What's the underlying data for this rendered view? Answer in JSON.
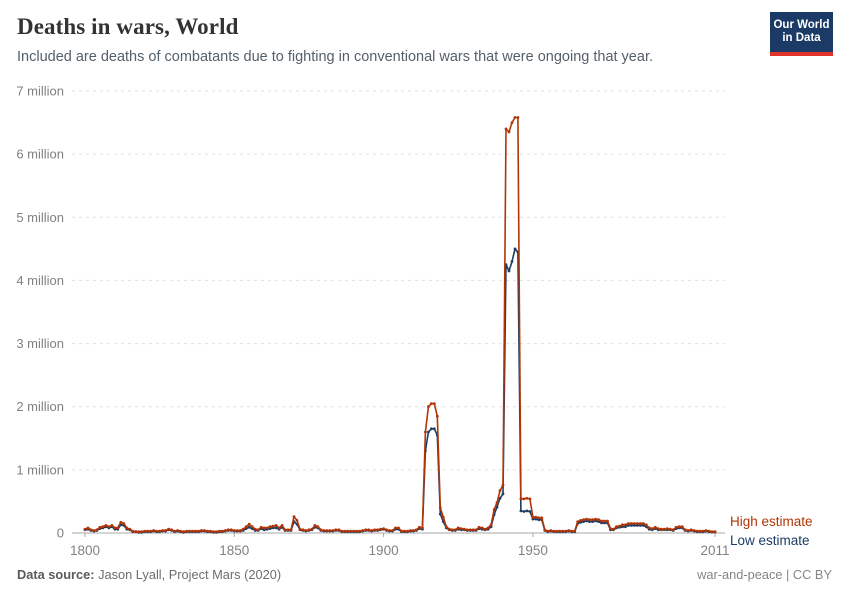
{
  "header": {
    "title": "Deaths in wars, World",
    "subtitle": "Included are deaths of combatants due to fighting in conventional wars that were ongoing that year.",
    "logo": {
      "line1": "Our World",
      "line2": "in Data"
    }
  },
  "legend": {
    "high_label": "High estimate",
    "low_label": "Low estimate"
  },
  "footer": {
    "source_label": "Data source:",
    "source_value": " Jason Lyall, Project Mars (2020)",
    "license": "war-and-peace | CC BY"
  },
  "colors": {
    "high": "#B13507",
    "low": "#1D3D63",
    "grid": "#e1e1e1",
    "zero_line": "#a7a7a7",
    "axis_text": "#818181",
    "tick": "#a7a7a7"
  },
  "chart_data": {
    "type": "line",
    "title": "Deaths in wars, World",
    "xlabel": "",
    "ylabel": "",
    "xlim": [
      1800,
      2011
    ],
    "ylim": [
      0,
      7000000
    ],
    "grid": "dashed-horizontal",
    "legend_position": "right-of-line-end",
    "xticks": [
      {
        "v": 1800,
        "label": "1800"
      },
      {
        "v": 1850,
        "label": "1850"
      },
      {
        "v": 1900,
        "label": "1900"
      },
      {
        "v": 1950,
        "label": "1950"
      },
      {
        "v": 2011,
        "label": "2011"
      }
    ],
    "yticks": [
      {
        "v": 0,
        "label": "0"
      },
      {
        "v": 1000000,
        "label": "1 million"
      },
      {
        "v": 2000000,
        "label": "2 million"
      },
      {
        "v": 3000000,
        "label": "3 million"
      },
      {
        "v": 4000000,
        "label": "4 million"
      },
      {
        "v": 5000000,
        "label": "5 million"
      },
      {
        "v": 6000000,
        "label": "6 million"
      },
      {
        "v": 7000000,
        "label": "7 million"
      }
    ],
    "x_years_start": 1800,
    "x_years_end": 2011,
    "series": [
      {
        "name": "Low estimate",
        "color": "#1D3D63",
        "values_millions": [
          0.05,
          0.06,
          0.04,
          0.03,
          0.04,
          0.07,
          0.08,
          0.1,
          0.08,
          0.1,
          0.06,
          0.06,
          0.13,
          0.12,
          0.06,
          0.05,
          0.02,
          0.02,
          0.01,
          0.01,
          0.02,
          0.02,
          0.02,
          0.03,
          0.02,
          0.02,
          0.03,
          0.03,
          0.05,
          0.04,
          0.02,
          0.03,
          0.02,
          0.01,
          0.02,
          0.02,
          0.02,
          0.02,
          0.02,
          0.03,
          0.03,
          0.02,
          0.02,
          0.01,
          0.01,
          0.02,
          0.02,
          0.03,
          0.04,
          0.04,
          0.03,
          0.03,
          0.03,
          0.04,
          0.07,
          0.09,
          0.07,
          0.04,
          0.04,
          0.07,
          0.05,
          0.06,
          0.07,
          0.08,
          0.08,
          0.06,
          0.09,
          0.04,
          0.04,
          0.04,
          0.18,
          0.14,
          0.05,
          0.04,
          0.03,
          0.04,
          0.05,
          0.09,
          0.08,
          0.04,
          0.03,
          0.03,
          0.03,
          0.03,
          0.04,
          0.04,
          0.02,
          0.02,
          0.02,
          0.02,
          0.02,
          0.02,
          0.02,
          0.03,
          0.04,
          0.04,
          0.03,
          0.04,
          0.04,
          0.05,
          0.06,
          0.04,
          0.03,
          0.03,
          0.06,
          0.06,
          0.02,
          0.02,
          0.02,
          0.03,
          0.03,
          0.04,
          0.07,
          0.06,
          1.3,
          1.6,
          1.65,
          1.65,
          1.55,
          0.3,
          0.18,
          0.08,
          0.05,
          0.04,
          0.04,
          0.06,
          0.05,
          0.05,
          0.04,
          0.04,
          0.04,
          0.04,
          0.07,
          0.06,
          0.05,
          0.06,
          0.1,
          0.29,
          0.41,
          0.55,
          0.62,
          4.25,
          4.15,
          4.3,
          4.5,
          4.45,
          0.35,
          0.34,
          0.35,
          0.34,
          0.22,
          0.22,
          0.21,
          0.21,
          0.04,
          0.02,
          0.03,
          0.02,
          0.02,
          0.02,
          0.02,
          0.02,
          0.03,
          0.02,
          0.02,
          0.15,
          0.17,
          0.18,
          0.19,
          0.18,
          0.18,
          0.19,
          0.18,
          0.16,
          0.16,
          0.16,
          0.05,
          0.05,
          0.08,
          0.09,
          0.1,
          0.1,
          0.12,
          0.12,
          0.12,
          0.12,
          0.12,
          0.12,
          0.1,
          0.06,
          0.05,
          0.07,
          0.05,
          0.05,
          0.05,
          0.05,
          0.05,
          0.04,
          0.07,
          0.08,
          0.08,
          0.04,
          0.03,
          0.04,
          0.03,
          0.02,
          0.02,
          0.02,
          0.03,
          0.02,
          0.015,
          0.015
        ]
      },
      {
        "name": "High estimate",
        "color": "#B13507",
        "values_millions": [
          0.06,
          0.08,
          0.05,
          0.04,
          0.05,
          0.09,
          0.1,
          0.12,
          0.1,
          0.12,
          0.08,
          0.08,
          0.17,
          0.15,
          0.08,
          0.06,
          0.03,
          0.02,
          0.02,
          0.02,
          0.03,
          0.03,
          0.03,
          0.04,
          0.03,
          0.03,
          0.04,
          0.04,
          0.06,
          0.05,
          0.03,
          0.04,
          0.03,
          0.02,
          0.03,
          0.03,
          0.03,
          0.03,
          0.03,
          0.04,
          0.04,
          0.03,
          0.03,
          0.02,
          0.02,
          0.03,
          0.03,
          0.04,
          0.05,
          0.05,
          0.04,
          0.04,
          0.04,
          0.06,
          0.1,
          0.14,
          0.1,
          0.06,
          0.05,
          0.09,
          0.08,
          0.08,
          0.1,
          0.11,
          0.12,
          0.08,
          0.12,
          0.05,
          0.05,
          0.05,
          0.26,
          0.2,
          0.06,
          0.05,
          0.04,
          0.05,
          0.06,
          0.12,
          0.1,
          0.05,
          0.04,
          0.04,
          0.04,
          0.04,
          0.05,
          0.05,
          0.03,
          0.03,
          0.03,
          0.03,
          0.03,
          0.03,
          0.03,
          0.04,
          0.05,
          0.05,
          0.04,
          0.05,
          0.05,
          0.06,
          0.07,
          0.05,
          0.04,
          0.04,
          0.08,
          0.08,
          0.03,
          0.03,
          0.03,
          0.04,
          0.04,
          0.05,
          0.09,
          0.08,
          1.6,
          2.0,
          2.05,
          2.05,
          1.85,
          0.4,
          0.25,
          0.1,
          0.06,
          0.05,
          0.05,
          0.08,
          0.07,
          0.06,
          0.05,
          0.05,
          0.05,
          0.05,
          0.09,
          0.08,
          0.06,
          0.08,
          0.13,
          0.37,
          0.48,
          0.67,
          0.76,
          6.4,
          6.35,
          6.5,
          6.58,
          6.58,
          0.54,
          0.54,
          0.55,
          0.54,
          0.25,
          0.25,
          0.24,
          0.24,
          0.05,
          0.03,
          0.04,
          0.03,
          0.03,
          0.03,
          0.03,
          0.03,
          0.04,
          0.03,
          0.03,
          0.18,
          0.2,
          0.21,
          0.22,
          0.21,
          0.21,
          0.22,
          0.21,
          0.19,
          0.19,
          0.19,
          0.07,
          0.06,
          0.1,
          0.11,
          0.13,
          0.13,
          0.15,
          0.15,
          0.15,
          0.15,
          0.15,
          0.15,
          0.13,
          0.08,
          0.07,
          0.09,
          0.07,
          0.06,
          0.06,
          0.07,
          0.06,
          0.05,
          0.09,
          0.1,
          0.1,
          0.05,
          0.04,
          0.05,
          0.04,
          0.03,
          0.03,
          0.03,
          0.04,
          0.03,
          0.02,
          0.02
        ]
      }
    ]
  }
}
